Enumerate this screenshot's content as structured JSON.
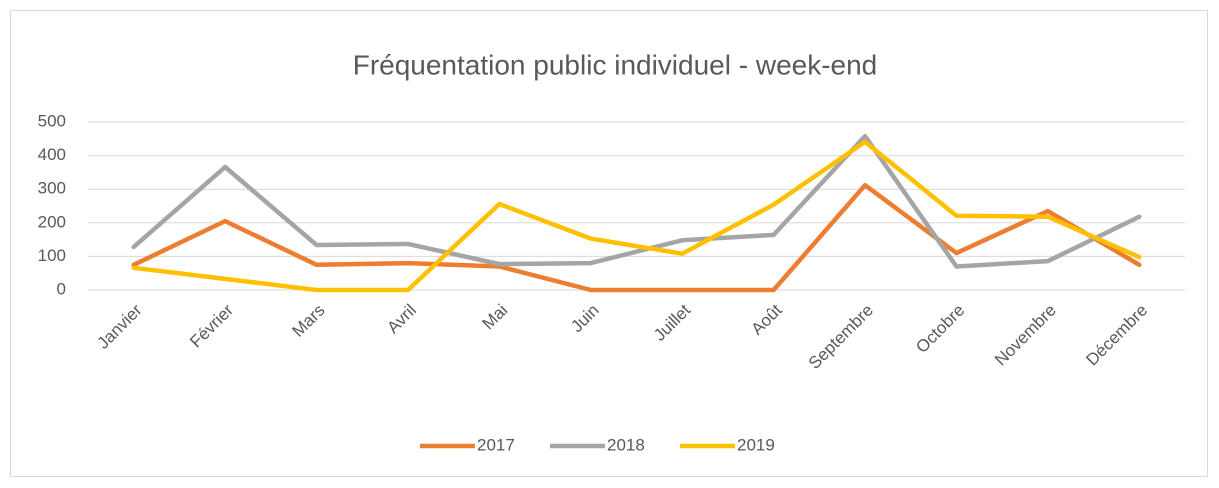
{
  "chart_data": {
    "type": "line",
    "title": "Fréquentation public individuel - week-end",
    "categories": [
      "Janvier",
      "Février",
      "Mars",
      "Avril",
      "Mai",
      "Juin",
      "Juillet",
      "Août",
      "Septembre",
      "Octobre",
      "Novembre",
      "Décembre"
    ],
    "series": [
      {
        "name": "2017",
        "color": "#ed7d31",
        "values": [
          75,
          205,
          75,
          80,
          70,
          0,
          0,
          0,
          312,
          110,
          235,
          75
        ]
      },
      {
        "name": "2018",
        "color": "#a5a5a5",
        "values": [
          128,
          366,
          134,
          137,
          77,
          80,
          148,
          164,
          458,
          70,
          86,
          218
        ]
      },
      {
        "name": "2019",
        "color": "#ffc000",
        "values": [
          66,
          33,
          0,
          0,
          256,
          153,
          108,
          254,
          441,
          221,
          218,
          98
        ]
      }
    ],
    "ylim": [
      0,
      500
    ],
    "yticks": [
      0,
      100,
      200,
      300,
      400,
      500
    ],
    "grid": true,
    "legend": "bottom"
  }
}
